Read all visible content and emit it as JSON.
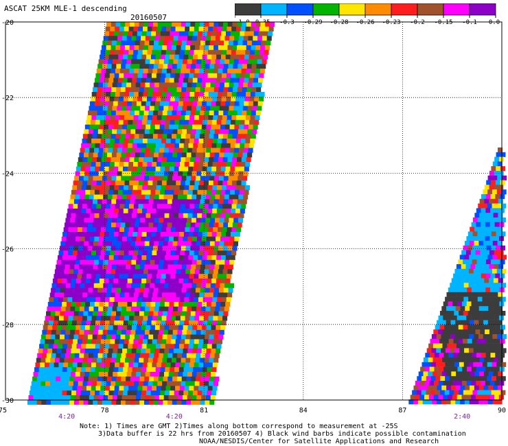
{
  "header": {
    "title": "ASCAT 25KM MLE-1 descending",
    "date": "20160507"
  },
  "colorbar": {
    "labels": [
      "-1.0",
      "-0.35",
      "-0.3",
      "-0.29",
      "-0.28",
      "-0.26",
      "-0.23",
      "-0.2",
      "-0.15",
      "-0.1",
      "0.0"
    ],
    "colors": [
      "#3c3c3c",
      "#00b4ff",
      "#0050ff",
      "#00b400",
      "#ffe600",
      "#ff8c00",
      "#ff1e1e",
      "#a0522d",
      "#ff00ff",
      "#8c00c8"
    ]
  },
  "map": {
    "lon_ticks": [
      "75",
      "78",
      "81",
      "84",
      "87",
      "90"
    ],
    "lat_ticks": [
      "-20",
      "-22",
      "-24",
      "-26",
      "-28",
      "-30"
    ],
    "time_labels": [
      "4:20",
      "4:20",
      "2:40"
    ]
  },
  "footer": {
    "note_line1": "Note: 1) Times are GMT 2)Times along bottom correspond to measurement at -25S",
    "note_line2": "3)Data buffer is 22 hrs from 20160507 4) Black wind barbs indicate possible contamination",
    "credit": "NOAA/NESDIS/Center for Satellite Applications and Research"
  }
}
